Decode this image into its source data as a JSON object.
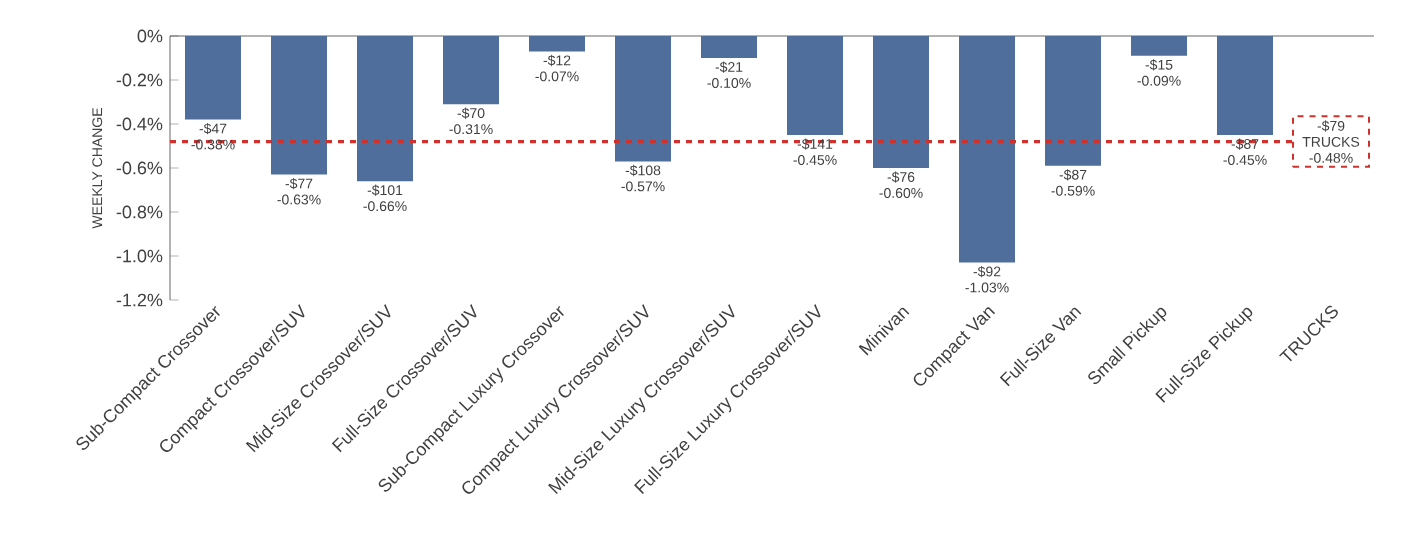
{
  "chart_data": {
    "type": "bar",
    "ylabel": "WEEKLY CHANGE",
    "categories": [
      "Sub-Compact Crossover",
      "Compact Crossover/SUV",
      "Mid-Size Crossover/SUV",
      "Full-Size Crossover/SUV",
      "Sub-Compact Luxury Crossover",
      "Compact Luxury Crossover/SUV",
      "Mid-Size Luxury Crossover/SUV",
      "Full-Size Luxury Crossover/SUV",
      "Minivan",
      "Compact Van",
      "Full-Size Van",
      "Small Pickup",
      "Full-Size Pickup",
      "TRUCKS"
    ],
    "values": [
      -0.38,
      -0.63,
      -0.66,
      -0.31,
      -0.07,
      -0.57,
      -0.1,
      -0.45,
      -0.6,
      -1.03,
      -0.59,
      -0.09,
      -0.45,
      null
    ],
    "value_labels": [
      "-$47 -0.38%",
      "-$77 -0.63%",
      "-$101 -0.66%",
      "-$70 -0.31%",
      "-$12 -0.07%",
      "-$108 -0.57%",
      "-$21 -0.10%",
      "-$141 -0.45%",
      "-$76 -0.60%",
      "-$92 -1.03%",
      "-$87 -0.59%",
      "-$15 -0.09%",
      "-$87 -0.45%",
      null
    ],
    "color": "#4f6e9c",
    "ylim": [
      -1.2,
      0
    ],
    "yticks": [
      {
        "value": 0,
        "label": "0%"
      },
      {
        "value": -0.2,
        "label": "-0.2%"
      },
      {
        "value": -0.4,
        "label": "-0.4%"
      },
      {
        "value": -0.6,
        "label": "-0.6%"
      },
      {
        "value": -0.8,
        "label": "-0.8%"
      },
      {
        "value": -1.0,
        "label": "-1.0%"
      },
      {
        "value": -1.2,
        "label": "-1.2%"
      }
    ],
    "ref_lines": [
      {
        "axis": "y",
        "value": -0.48,
        "label": "-$79 TRUCKS -0.48%",
        "color": "#d0312d",
        "line_style": "dashed"
      }
    ]
  }
}
